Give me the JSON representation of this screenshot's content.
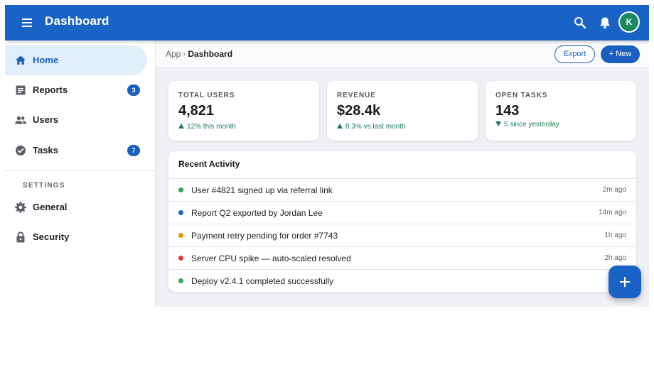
{
  "appbar": {
    "title": "Dashboard",
    "avatar_initial": "K",
    "icons": [
      "menu-icon",
      "search-icon",
      "bell-icon"
    ],
    "color": "#1a63c6"
  },
  "sidebar": {
    "items": [
      {
        "label": "Home",
        "icon": "home-icon",
        "active": true
      },
      {
        "label": "Reports",
        "icon": "reports-icon",
        "badge": "3"
      },
      {
        "label": "Users",
        "icon": "users-icon"
      },
      {
        "label": "Tasks",
        "icon": "tasks-icon",
        "badge": "7"
      }
    ],
    "section_label": "SETTINGS",
    "settings_items": [
      {
        "label": "General",
        "icon": "gear-icon"
      },
      {
        "label": "Security",
        "icon": "lock-icon"
      }
    ]
  },
  "breadcrumb": {
    "parent": "App",
    "separator": "›",
    "current": "Dashboard"
  },
  "actions": {
    "export_label": "Export",
    "new_label": "+ New"
  },
  "cards": [
    {
      "label": "TOTAL USERS",
      "value": "4,821",
      "delta": "12% this month",
      "direction": "up"
    },
    {
      "label": "REVENUE",
      "value": "$28.4k",
      "delta": "8.3% vs last month",
      "direction": "up"
    },
    {
      "label": "OPEN TASKS",
      "value": "143",
      "delta": "5 since yesterday",
      "direction": "down"
    }
  ],
  "activity": {
    "title": "Recent Activity",
    "rows": [
      {
        "text": "User #4821 signed up via referral link",
        "time": "2m ago",
        "status_color": "#34a853"
      },
      {
        "text": "Report Q2 exported by Jordan Lee",
        "time": "14m ago",
        "status_color": "#1a63c6"
      },
      {
        "text": "Payment retry pending for order #7743",
        "time": "1h ago",
        "status_color": "#f29100"
      },
      {
        "text": "Server CPU spike — auto-scaled resolved",
        "time": "2h ago",
        "status_color": "#e53935"
      },
      {
        "text": "Deploy v2.4.1 completed successfully",
        "time": "",
        "status_color": "#34a853"
      }
    ]
  },
  "fab": {
    "icon": "plus-icon"
  }
}
